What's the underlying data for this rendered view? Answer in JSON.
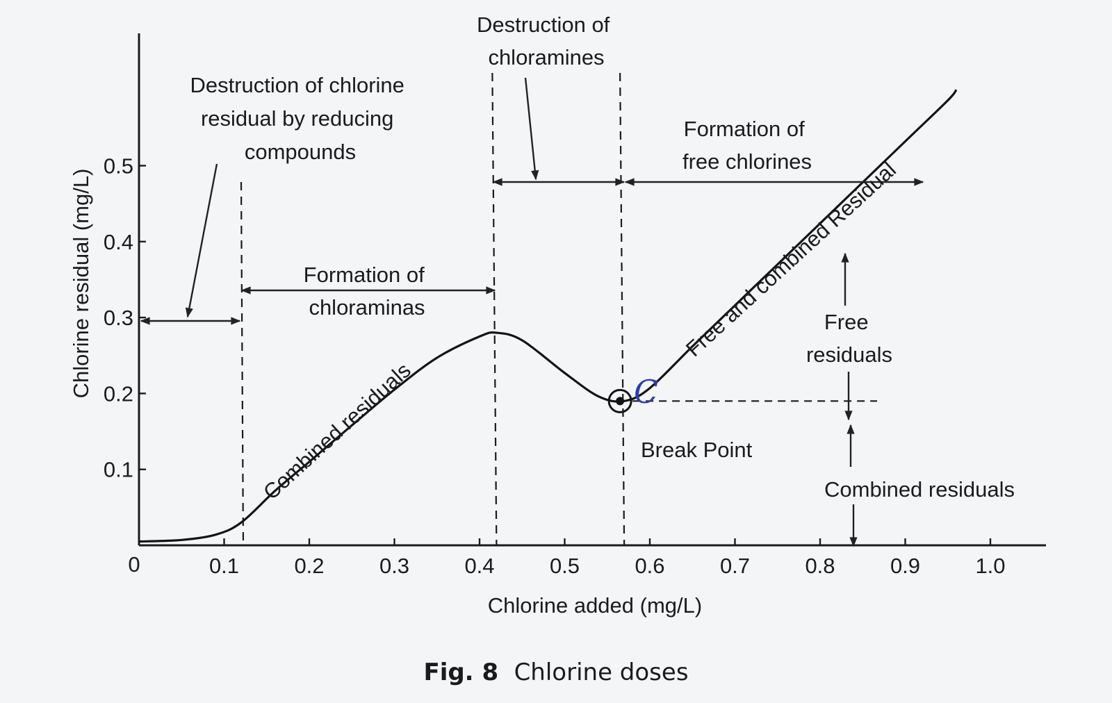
{
  "chart_data": {
    "type": "line",
    "xlabel": "Chlorine added (mg/L)",
    "ylabel": "Chlorine residual (mg/L)",
    "xlim": [
      0,
      1.05
    ],
    "ylim": [
      0,
      0.62
    ],
    "grid": false,
    "x_ticks": [
      0.1,
      0.2,
      0.3,
      0.4,
      0.5,
      0.6,
      0.7,
      0.8,
      0.9,
      1.0
    ],
    "x_tick_labels": [
      "0.1",
      "0.2",
      "0.3",
      "0.4",
      "0.5",
      "0.6",
      "0.7",
      "0.8",
      "0.9",
      "1.0"
    ],
    "origin_label": "0",
    "y_ticks": [
      0.1,
      0.2,
      0.3,
      0.4,
      0.5
    ],
    "y_tick_labels": [
      "0.1",
      "0.2",
      "0.3",
      "0.4",
      "0.5"
    ],
    "series": [
      {
        "x": [
          0.0,
          0.05,
          0.09,
          0.12,
          0.16,
          0.2,
          0.25,
          0.3,
          0.35,
          0.4,
          0.42,
          0.45,
          0.5,
          0.54,
          0.57,
          0.6,
          0.65,
          0.7,
          0.75,
          0.8,
          0.85,
          0.9,
          0.95,
          0.96
        ],
        "y": [
          0.005,
          0.007,
          0.014,
          0.03,
          0.072,
          0.11,
          0.158,
          0.205,
          0.247,
          0.275,
          0.28,
          0.27,
          0.227,
          0.196,
          0.19,
          0.207,
          0.262,
          0.316,
          0.37,
          0.424,
          0.478,
          0.532,
          0.586,
          0.6
        ]
      }
    ],
    "boundaries_x": [
      0.12,
      0.415,
      0.565
    ],
    "break_point": {
      "x": 0.565,
      "y": 0.19
    },
    "annotations": {
      "destruction_reducing": [
        "Destruction of chlorine",
        "residual by reducing",
        "compounds"
      ],
      "formation_chloraminas": [
        "Formation of",
        "chloraminas"
      ],
      "destruction_chloramines": [
        "Destruction of",
        "chloramines"
      ],
      "formation_free": [
        "Formation of",
        "free chlorines"
      ],
      "combined_residuals_curve": "Combined residuals",
      "free_combined_residual": "Free and combined Residual",
      "free_residuals": [
        "Free",
        "residuals"
      ],
      "break_point": "Break Point",
      "combined_residuals_right": "Combined residuals",
      "handwritten_mark": "C"
    }
  },
  "caption": {
    "label": "Fig. 8",
    "text": "Chlorine doses"
  }
}
